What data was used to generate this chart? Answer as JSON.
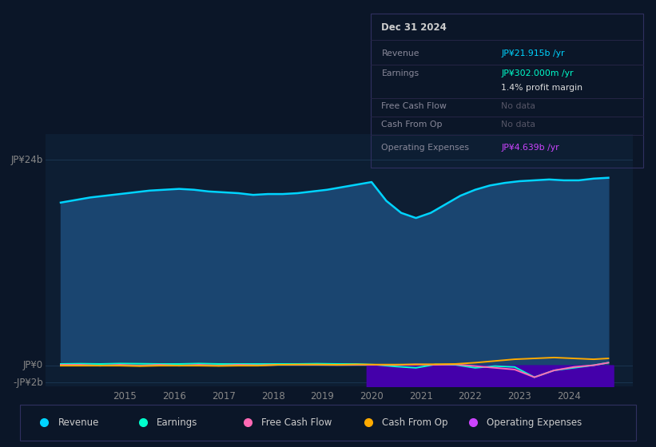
{
  "bg_color": "#0b1628",
  "chart_bg": "#0d1e33",
  "title": "Dec 31 2024",
  "ylim": [
    -2500000000.0,
    27000000000.0
  ],
  "ytick_vals": [
    -2000000000.0,
    0,
    24000000000.0
  ],
  "ytick_labels": [
    "-JP¥2b",
    "JP¥0",
    "JP¥24b"
  ],
  "xticks": [
    2015,
    2016,
    2017,
    2018,
    2019,
    2020,
    2021,
    2022,
    2023,
    2024
  ],
  "xlim_start": 2013.4,
  "xlim_end": 2025.3,
  "revenue_x": [
    2013.7,
    2014.0,
    2014.3,
    2014.6,
    2014.9,
    2015.2,
    2015.5,
    2015.8,
    2016.1,
    2016.4,
    2016.7,
    2017.0,
    2017.3,
    2017.6,
    2017.9,
    2018.2,
    2018.5,
    2018.8,
    2019.1,
    2019.4,
    2019.7,
    2020.0,
    2020.3,
    2020.6,
    2020.9,
    2021.2,
    2021.5,
    2021.8,
    2022.1,
    2022.4,
    2022.7,
    2023.0,
    2023.3,
    2023.6,
    2023.9,
    2024.2,
    2024.5,
    2024.8
  ],
  "revenue_y": [
    19000000000.0,
    19300000000.0,
    19600000000.0,
    19800000000.0,
    20000000000.0,
    20200000000.0,
    20400000000.0,
    20500000000.0,
    20600000000.0,
    20500000000.0,
    20300000000.0,
    20200000000.0,
    20100000000.0,
    19900000000.0,
    20000000000.0,
    20000000000.0,
    20100000000.0,
    20300000000.0,
    20500000000.0,
    20800000000.0,
    21100000000.0,
    21400000000.0,
    19200000000.0,
    17800000000.0,
    17200000000.0,
    17800000000.0,
    18800000000.0,
    19800000000.0,
    20500000000.0,
    21000000000.0,
    21300000000.0,
    21500000000.0,
    21600000000.0,
    21700000000.0,
    21600000000.0,
    21600000000.0,
    21800000000.0,
    21900000000.0
  ],
  "earnings_x": [
    2013.7,
    2014.1,
    2014.5,
    2014.9,
    2015.3,
    2015.7,
    2016.1,
    2016.5,
    2016.9,
    2017.3,
    2017.7,
    2018.1,
    2018.5,
    2018.9,
    2019.3,
    2019.7,
    2020.1,
    2020.5,
    2020.9,
    2021.3,
    2021.7,
    2022.1,
    2022.5,
    2022.9,
    2023.3,
    2023.7,
    2024.1,
    2024.5,
    2024.8
  ],
  "earnings_y": [
    150000000.0,
    180000000.0,
    150000000.0,
    200000000.0,
    180000000.0,
    150000000.0,
    150000000.0,
    200000000.0,
    150000000.0,
    150000000.0,
    150000000.0,
    150000000.0,
    150000000.0,
    180000000.0,
    150000000.0,
    150000000.0,
    50000000.0,
    -150000000.0,
    -300000000.0,
    100000000.0,
    50000000.0,
    -300000000.0,
    -100000000.0,
    -200000000.0,
    -1400000000.0,
    -600000000.0,
    -300000000.0,
    0,
    300000000.0
  ],
  "fcf_x": [
    2013.7,
    2014.1,
    2014.5,
    2014.9,
    2015.3,
    2015.7,
    2016.1,
    2016.5,
    2016.9,
    2017.3,
    2017.7,
    2018.1,
    2018.5,
    2018.9,
    2019.3,
    2019.7,
    2020.1,
    2020.5,
    2020.9,
    2021.3,
    2021.7,
    2022.1,
    2022.5,
    2022.9,
    2023.3,
    2023.7,
    2024.1,
    2024.5,
    2024.8
  ],
  "fcf_y": [
    50000000.0,
    50000000.0,
    -50000000.0,
    50000000.0,
    -50000000.0,
    50000000.0,
    -50000000.0,
    50000000.0,
    -50000000.0,
    50000000.0,
    0,
    50000000.0,
    50000000.0,
    50000000.0,
    30000000.0,
    50000000.0,
    50000000.0,
    30000000.0,
    100000000.0,
    50000000.0,
    100000000.0,
    -100000000.0,
    -300000000.0,
    -500000000.0,
    -1400000000.0,
    -600000000.0,
    -200000000.0,
    0,
    300000000.0
  ],
  "cashop_x": [
    2013.7,
    2014.1,
    2014.5,
    2014.9,
    2015.3,
    2015.7,
    2016.1,
    2016.5,
    2016.9,
    2017.3,
    2017.7,
    2018.1,
    2018.5,
    2018.9,
    2019.3,
    2019.7,
    2020.1,
    2020.5,
    2020.9,
    2021.3,
    2021.7,
    2022.1,
    2022.5,
    2022.9,
    2023.3,
    2023.7,
    2024.1,
    2024.5,
    2024.8
  ],
  "cashop_y": [
    -50000000.0,
    -50000000.0,
    -50000000.0,
    -50000000.0,
    -100000000.0,
    -50000000.0,
    -50000000.0,
    -50000000.0,
    -80000000.0,
    -50000000.0,
    -50000000.0,
    50000000.0,
    80000000.0,
    80000000.0,
    50000000.0,
    100000000.0,
    80000000.0,
    80000000.0,
    100000000.0,
    120000000.0,
    150000000.0,
    300000000.0,
    500000000.0,
    700000000.0,
    800000000.0,
    900000000.0,
    800000000.0,
    700000000.0,
    800000000.0
  ],
  "opex_x": [
    2019.9,
    2020.2,
    2020.5,
    2020.8,
    2021.1,
    2021.4,
    2021.7,
    2022.0,
    2022.3,
    2022.6,
    2022.9,
    2023.2,
    2023.5,
    2023.8,
    2024.1,
    2024.4,
    2024.7,
    2024.9
  ],
  "opex_y": [
    -3500000000.0,
    -3800000000.0,
    -4000000000.0,
    -4100000000.0,
    -4200000000.0,
    -4300000000.0,
    -4200000000.0,
    -4350000000.0,
    -4500000000.0,
    -4600000000.0,
    -4500000000.0,
    -4500000000.0,
    -4500000000.0,
    -4400000000.0,
    -4400000000.0,
    -4500000000.0,
    -4600000000.0,
    -4640000000.0
  ],
  "revenue_color": "#00d4ff",
  "revenue_fill": "#1a4570",
  "earnings_color": "#00ffcc",
  "fcf_color": "#ff69b4",
  "cashop_color": "#ffaa00",
  "opex_color": "#cc44ff",
  "opex_fill": "#4400aa",
  "grid_color": "#1a3550",
  "zero_line_color": "#2a4a6a",
  "tick_color": "#888888",
  "legend_items": [
    {
      "label": "Revenue",
      "color": "#00d4ff"
    },
    {
      "label": "Earnings",
      "color": "#00ffcc"
    },
    {
      "label": "Free Cash Flow",
      "color": "#ff69b4"
    },
    {
      "label": "Cash From Op",
      "color": "#ffaa00"
    },
    {
      "label": "Operating Expenses",
      "color": "#cc44ff"
    }
  ]
}
